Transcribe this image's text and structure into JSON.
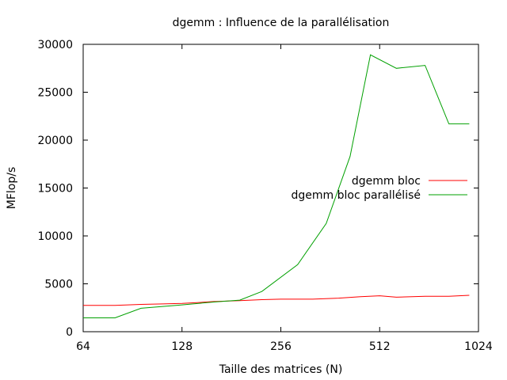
{
  "chart_data": {
    "type": "line",
    "title": "dgemm : Influence de la parallélisation",
    "xlabel": "Taille des matrices (N)",
    "ylabel": "MFlop/s",
    "x_scale": "log2",
    "xlim": [
      64,
      1024
    ],
    "ylim": [
      0,
      30000
    ],
    "x_ticks": [
      64,
      128,
      256,
      512,
      1024
    ],
    "y_ticks": [
      0,
      5000,
      10000,
      15000,
      20000,
      25000,
      30000
    ],
    "legend_position": "right",
    "grid": false,
    "series": [
      {
        "name": "dgemm bloc",
        "color": "#ff0000",
        "x": [
          64,
          80,
          96,
          112,
          128,
          144,
          160,
          192,
          224,
          256,
          320,
          384,
          448,
          512,
          576,
          704,
          832,
          960
        ],
        "y": [
          2750,
          2750,
          2850,
          2900,
          2950,
          3050,
          3150,
          3250,
          3350,
          3400,
          3400,
          3500,
          3650,
          3750,
          3600,
          3700,
          3700,
          3800
        ]
      },
      {
        "name": "dgemm bloc parallélisé",
        "color": "#00a000",
        "x": [
          64,
          80,
          96,
          128,
          160,
          192,
          224,
          288,
          352,
          416,
          480,
          576,
          704,
          832,
          960
        ],
        "y": [
          1450,
          1450,
          2450,
          2800,
          3100,
          3300,
          4200,
          7000,
          11300,
          18300,
          28900,
          27500,
          27800,
          21700,
          21700
        ]
      }
    ]
  }
}
